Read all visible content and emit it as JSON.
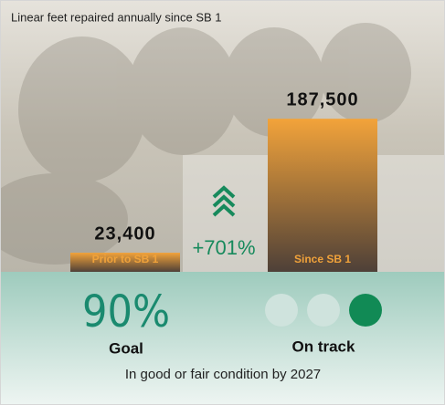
{
  "chart_data": {
    "type": "bar",
    "title": "Linear feet repaired annually since SB 1",
    "categories": [
      "Prior to SB 1",
      "Since SB 1"
    ],
    "values": [
      23400,
      187500
    ],
    "value_labels": [
      "23,400",
      "187,500"
    ],
    "ylim": [
      0,
      200000
    ],
    "color": "#f0a23a",
    "annotation": "+701%"
  },
  "goal": {
    "value": "90%",
    "label": "Goal",
    "status": "On track",
    "caption": "In good or fair condition by 2027"
  }
}
